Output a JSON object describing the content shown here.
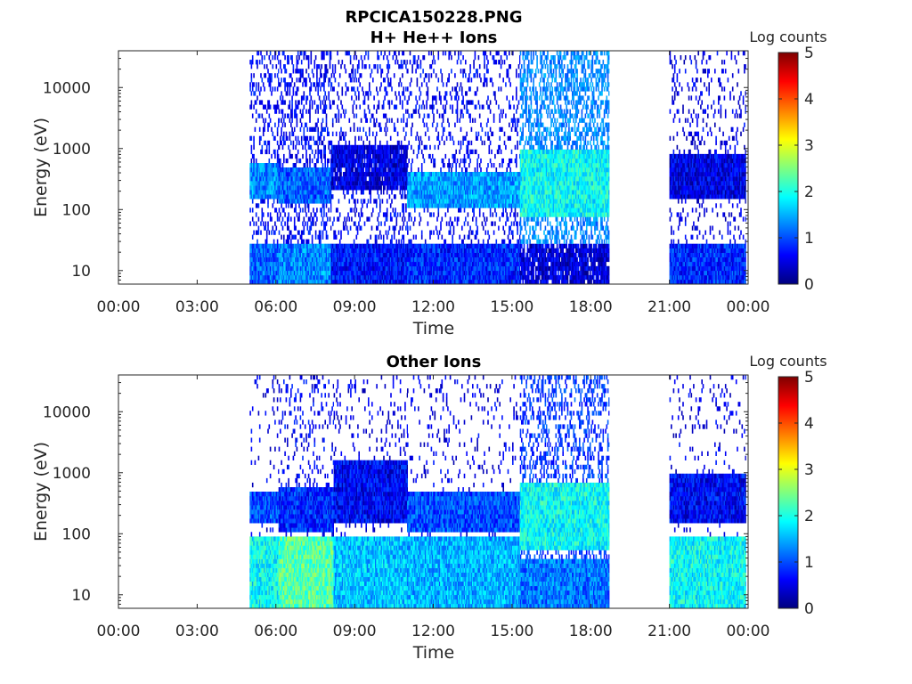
{
  "figure": {
    "title": "RPCICA150228.PNG"
  },
  "colorbar": {
    "colormap": "jet",
    "colors": [
      "#00007f",
      "#0000ff",
      "#007fff",
      "#00ffff",
      "#7fff7f",
      "#ffff00",
      "#ff7f00",
      "#ff0000",
      "#7f0000"
    ]
  },
  "chart_data": [
    {
      "type": "heatmap",
      "title": "H+ He++ Ions",
      "xlabel": "Time",
      "ylabel": "Energy (eV)",
      "x_tick_labels": [
        "00:00",
        "03:00",
        "06:00",
        "09:00",
        "12:00",
        "15:00",
        "18:00",
        "21:00",
        "00:00"
      ],
      "x_tick_hours": [
        0,
        3,
        6,
        9,
        12,
        15,
        18,
        21,
        24
      ],
      "xlim_hours": [
        0,
        24
      ],
      "y_tick_labels": [
        "10",
        "100",
        "1000",
        "10000"
      ],
      "y_tick_values": [
        10,
        100,
        1000,
        10000
      ],
      "ylim": [
        6,
        40000
      ],
      "y_scale": "log",
      "colorbar_label": "Log counts",
      "colorbar_ticks": [
        "0",
        "1",
        "2",
        "3",
        "4",
        "5"
      ],
      "clim": [
        0,
        5
      ],
      "data_gaps_hours": [
        [
          0,
          5
        ],
        [
          18.7,
          21
        ]
      ],
      "intervals": [
        {
          "start": 5.0,
          "end": 6.1,
          "low_log": 1.1,
          "low_emax": 28,
          "mid_log": 1.3,
          "mid_emin": 150,
          "mid_emax": 600,
          "high_log": 0.35,
          "high_density": 0.25
        },
        {
          "start": 6.1,
          "end": 8.1,
          "low_log": 1.3,
          "low_emax": 28,
          "mid_log": 1.1,
          "mid_emin": 120,
          "mid_emax": 500,
          "high_log": 0.3,
          "high_density": 0.35
        },
        {
          "start": 8.1,
          "end": 11.0,
          "low_log": 0.7,
          "low_emax": 28,
          "mid_log": 0.45,
          "mid_emin": 200,
          "mid_emax": 1200,
          "high_log": 0.3,
          "high_density": 0.22
        },
        {
          "start": 11.0,
          "end": 15.3,
          "low_log": 0.8,
          "low_emax": 28,
          "mid_log": 1.4,
          "mid_emin": 100,
          "mid_emax": 400,
          "high_log": 0.3,
          "high_density": 0.2
        },
        {
          "start": 15.3,
          "end": 18.7,
          "low_log": 0.4,
          "low_emax": 28,
          "mid_log": 1.9,
          "mid_emin": 80,
          "mid_emax": 900,
          "high_log": 1.0,
          "high_density": 0.5
        },
        {
          "start": 21.0,
          "end": 23.9,
          "low_log": 0.8,
          "low_emax": 28,
          "mid_log": 0.5,
          "mid_emin": 150,
          "mid_emax": 800,
          "high_log": 0.2,
          "high_density": 0.15
        }
      ]
    },
    {
      "type": "heatmap",
      "title": "Other Ions",
      "xlabel": "Time",
      "ylabel": "Energy (eV)",
      "x_tick_labels": [
        "00:00",
        "03:00",
        "06:00",
        "09:00",
        "12:00",
        "15:00",
        "18:00",
        "21:00",
        "00:00"
      ],
      "x_tick_hours": [
        0,
        3,
        6,
        9,
        12,
        15,
        18,
        21,
        24
      ],
      "xlim_hours": [
        0,
        24
      ],
      "y_tick_labels": [
        "10",
        "100",
        "1000",
        "10000"
      ],
      "y_tick_values": [
        10,
        100,
        1000,
        10000
      ],
      "ylim": [
        6,
        40000
      ],
      "y_scale": "log",
      "colorbar_label": "Log counts",
      "colorbar_ticks": [
        "0",
        "1",
        "2",
        "3",
        "4",
        "5"
      ],
      "clim": [
        0,
        5
      ],
      "data_gaps_hours": [
        [
          0,
          5
        ],
        [
          18.7,
          21
        ]
      ],
      "intervals": [
        {
          "start": 5.0,
          "end": 6.1,
          "low_log": 1.9,
          "low_emax": 90,
          "mid_log": 1.0,
          "mid_emin": 150,
          "mid_emax": 500,
          "high_log": 0.2,
          "high_density": 0.08
        },
        {
          "start": 6.1,
          "end": 8.2,
          "low_log": 2.3,
          "low_emax": 90,
          "mid_log": 0.8,
          "mid_emin": 100,
          "mid_emax": 600,
          "high_log": 0.3,
          "high_density": 0.15
        },
        {
          "start": 8.2,
          "end": 11.0,
          "low_log": 1.6,
          "low_emax": 90,
          "mid_log": 0.6,
          "mid_emin": 150,
          "mid_emax": 1500,
          "high_log": 0.2,
          "high_density": 0.1
        },
        {
          "start": 11.0,
          "end": 15.3,
          "low_log": 1.5,
          "low_emax": 90,
          "mid_log": 1.0,
          "mid_emin": 100,
          "mid_emax": 500,
          "high_log": 0.2,
          "high_density": 0.08
        },
        {
          "start": 15.3,
          "end": 18.7,
          "low_log": 1.2,
          "low_emax": 40,
          "mid_log": 1.9,
          "mid_emin": 50,
          "mid_emax": 700,
          "high_log": 0.6,
          "high_density": 0.3
        },
        {
          "start": 21.0,
          "end": 23.9,
          "low_log": 1.9,
          "low_emax": 90,
          "mid_log": 0.6,
          "mid_emin": 150,
          "mid_emax": 900,
          "high_log": 0.2,
          "high_density": 0.08
        }
      ]
    }
  ]
}
